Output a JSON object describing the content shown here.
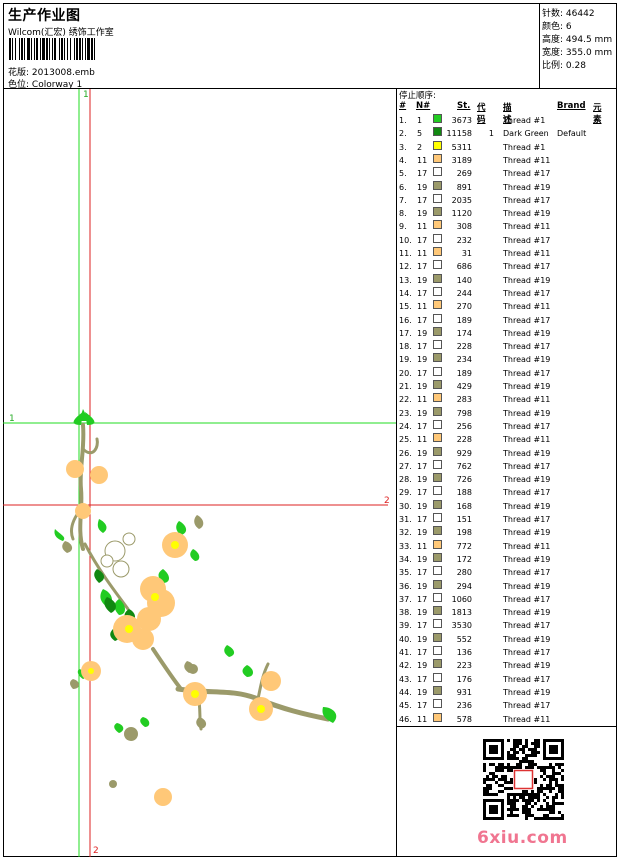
{
  "header": {
    "title": "生产作业图",
    "company": "Wilcom(汇宏) 绣饰工作室",
    "design_label": "花版:",
    "design_value": "2013008.emb",
    "colorway_label": "色位:",
    "colorway_value": "Colorway 1"
  },
  "stats": {
    "stitches_label": "针数:",
    "stitches_value": "46442",
    "colors_label": "颜色:",
    "colors_value": "6",
    "height_label": "高度:",
    "height_value": "494.5 mm",
    "width_label": "宽度:",
    "width_value": "355.0 mm",
    "scale_label": "比例:",
    "scale_value": "0.28"
  },
  "guides": {
    "h1": "1",
    "h2": "2",
    "v1": "1",
    "v2": "2"
  },
  "table": {
    "title": "停止顺序:",
    "headers": {
      "idx": "#",
      "n": "N#",
      "st": "St.",
      "code": "代码",
      "desc": "描述",
      "brand": "Brand",
      "elem": "元素"
    },
    "rows": [
      {
        "i": "1.",
        "n": "1",
        "st": "3673",
        "code": "",
        "desc": "Thread #1",
        "brand": "",
        "color": "#22cc22"
      },
      {
        "i": "2.",
        "n": "5",
        "st": "11158",
        "code": "1",
        "desc": "Dark Green",
        "brand": "Default",
        "color": "#118811"
      },
      {
        "i": "3.",
        "n": "2",
        "st": "5311",
        "code": "",
        "desc": "Thread #1",
        "brand": "",
        "color": "#ffff00"
      },
      {
        "i": "4.",
        "n": "11",
        "st": "3189",
        "code": "",
        "desc": "Thread #11",
        "brand": "",
        "color": "#ffc878"
      },
      {
        "i": "5.",
        "n": "17",
        "st": "269",
        "code": "",
        "desc": "Thread #17",
        "brand": "",
        "color": "#ffffff"
      },
      {
        "i": "6.",
        "n": "19",
        "st": "891",
        "code": "",
        "desc": "Thread #19",
        "brand": "",
        "color": "#9b9a6a"
      },
      {
        "i": "7.",
        "n": "17",
        "st": "2035",
        "code": "",
        "desc": "Thread #17",
        "brand": "",
        "color": "#ffffff"
      },
      {
        "i": "8.",
        "n": "19",
        "st": "1120",
        "code": "",
        "desc": "Thread #19",
        "brand": "",
        "color": "#9b9a6a"
      },
      {
        "i": "9.",
        "n": "11",
        "st": "308",
        "code": "",
        "desc": "Thread #11",
        "brand": "",
        "color": "#ffc878"
      },
      {
        "i": "10.",
        "n": "17",
        "st": "232",
        "code": "",
        "desc": "Thread #17",
        "brand": "",
        "color": "#ffffff"
      },
      {
        "i": "11.",
        "n": "11",
        "st": "31",
        "code": "",
        "desc": "Thread #11",
        "brand": "",
        "color": "#ffc878"
      },
      {
        "i": "12.",
        "n": "17",
        "st": "686",
        "code": "",
        "desc": "Thread #17",
        "brand": "",
        "color": "#ffffff"
      },
      {
        "i": "13.",
        "n": "19",
        "st": "140",
        "code": "",
        "desc": "Thread #19",
        "brand": "",
        "color": "#9b9a6a"
      },
      {
        "i": "14.",
        "n": "17",
        "st": "244",
        "code": "",
        "desc": "Thread #17",
        "brand": "",
        "color": "#ffffff"
      },
      {
        "i": "15.",
        "n": "11",
        "st": "270",
        "code": "",
        "desc": "Thread #11",
        "brand": "",
        "color": "#ffc878"
      },
      {
        "i": "16.",
        "n": "17",
        "st": "189",
        "code": "",
        "desc": "Thread #17",
        "brand": "",
        "color": "#ffffff"
      },
      {
        "i": "17.",
        "n": "19",
        "st": "174",
        "code": "",
        "desc": "Thread #19",
        "brand": "",
        "color": "#9b9a6a"
      },
      {
        "i": "18.",
        "n": "17",
        "st": "228",
        "code": "",
        "desc": "Thread #17",
        "brand": "",
        "color": "#ffffff"
      },
      {
        "i": "19.",
        "n": "19",
        "st": "234",
        "code": "",
        "desc": "Thread #19",
        "brand": "",
        "color": "#9b9a6a"
      },
      {
        "i": "20.",
        "n": "17",
        "st": "189",
        "code": "",
        "desc": "Thread #17",
        "brand": "",
        "color": "#ffffff"
      },
      {
        "i": "21.",
        "n": "19",
        "st": "429",
        "code": "",
        "desc": "Thread #19",
        "brand": "",
        "color": "#9b9a6a"
      },
      {
        "i": "22.",
        "n": "11",
        "st": "283",
        "code": "",
        "desc": "Thread #11",
        "brand": "",
        "color": "#ffc878"
      },
      {
        "i": "23.",
        "n": "19",
        "st": "798",
        "code": "",
        "desc": "Thread #19",
        "brand": "",
        "color": "#9b9a6a"
      },
      {
        "i": "24.",
        "n": "17",
        "st": "256",
        "code": "",
        "desc": "Thread #17",
        "brand": "",
        "color": "#ffffff"
      },
      {
        "i": "25.",
        "n": "11",
        "st": "228",
        "code": "",
        "desc": "Thread #11",
        "brand": "",
        "color": "#ffc878"
      },
      {
        "i": "26.",
        "n": "19",
        "st": "929",
        "code": "",
        "desc": "Thread #19",
        "brand": "",
        "color": "#9b9a6a"
      },
      {
        "i": "27.",
        "n": "17",
        "st": "762",
        "code": "",
        "desc": "Thread #17",
        "brand": "",
        "color": "#ffffff"
      },
      {
        "i": "28.",
        "n": "19",
        "st": "726",
        "code": "",
        "desc": "Thread #19",
        "brand": "",
        "color": "#9b9a6a"
      },
      {
        "i": "29.",
        "n": "17",
        "st": "188",
        "code": "",
        "desc": "Thread #17",
        "brand": "",
        "color": "#ffffff"
      },
      {
        "i": "30.",
        "n": "19",
        "st": "168",
        "code": "",
        "desc": "Thread #19",
        "brand": "",
        "color": "#9b9a6a"
      },
      {
        "i": "31.",
        "n": "17",
        "st": "151",
        "code": "",
        "desc": "Thread #17",
        "brand": "",
        "color": "#ffffff"
      },
      {
        "i": "32.",
        "n": "19",
        "st": "198",
        "code": "",
        "desc": "Thread #19",
        "brand": "",
        "color": "#9b9a6a"
      },
      {
        "i": "33.",
        "n": "11",
        "st": "772",
        "code": "",
        "desc": "Thread #11",
        "brand": "",
        "color": "#ffc878"
      },
      {
        "i": "34.",
        "n": "19",
        "st": "172",
        "code": "",
        "desc": "Thread #19",
        "brand": "",
        "color": "#9b9a6a"
      },
      {
        "i": "35.",
        "n": "17",
        "st": "280",
        "code": "",
        "desc": "Thread #17",
        "brand": "",
        "color": "#ffffff"
      },
      {
        "i": "36.",
        "n": "19",
        "st": "294",
        "code": "",
        "desc": "Thread #19",
        "brand": "",
        "color": "#9b9a6a"
      },
      {
        "i": "37.",
        "n": "17",
        "st": "1060",
        "code": "",
        "desc": "Thread #17",
        "brand": "",
        "color": "#ffffff"
      },
      {
        "i": "38.",
        "n": "19",
        "st": "1813",
        "code": "",
        "desc": "Thread #19",
        "brand": "",
        "color": "#9b9a6a"
      },
      {
        "i": "39.",
        "n": "17",
        "st": "3530",
        "code": "",
        "desc": "Thread #17",
        "brand": "",
        "color": "#ffffff"
      },
      {
        "i": "40.",
        "n": "19",
        "st": "552",
        "code": "",
        "desc": "Thread #19",
        "brand": "",
        "color": "#9b9a6a"
      },
      {
        "i": "41.",
        "n": "17",
        "st": "136",
        "code": "",
        "desc": "Thread #17",
        "brand": "",
        "color": "#ffffff"
      },
      {
        "i": "42.",
        "n": "19",
        "st": "223",
        "code": "",
        "desc": "Thread #19",
        "brand": "",
        "color": "#9b9a6a"
      },
      {
        "i": "43.",
        "n": "17",
        "st": "176",
        "code": "",
        "desc": "Thread #17",
        "brand": "",
        "color": "#ffffff"
      },
      {
        "i": "44.",
        "n": "19",
        "st": "931",
        "code": "",
        "desc": "Thread #19",
        "brand": "",
        "color": "#9b9a6a"
      },
      {
        "i": "45.",
        "n": "17",
        "st": "236",
        "code": "",
        "desc": "Thread #17",
        "brand": "",
        "color": "#ffffff"
      },
      {
        "i": "46.",
        "n": "11",
        "st": "578",
        "code": "",
        "desc": "Thread #11",
        "brand": "",
        "color": "#ffc878"
      }
    ]
  },
  "watermark": {
    "logo_text": "6xiu.com",
    "seal_text": "刺绣图片"
  },
  "colors": {
    "guide_green": "#22dd22",
    "guide_red": "#dd2222",
    "thread_green": "#22cc22",
    "thread_dark_green": "#118811",
    "thread_yellow": "#ffff00",
    "thread_peach": "#ffc878",
    "thread_olive": "#9b9a6a"
  }
}
